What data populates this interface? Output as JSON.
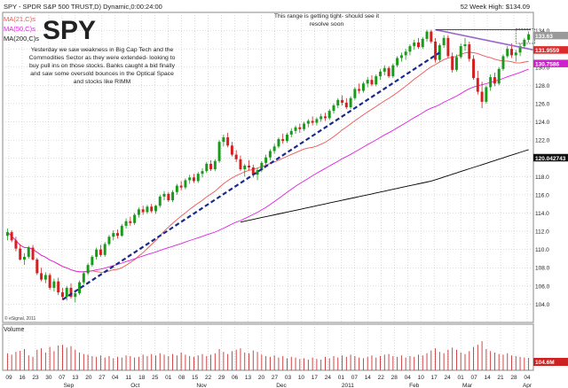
{
  "header": {
    "title": "SPY - SPDR S&P 500 TRUST,D) Dynamic,0:00:24:00",
    "week52": "52 Week High: $134.09",
    "ticker": "SPY",
    "ma21": "MA(21,C)s",
    "ma50": "MA(50,C)s",
    "ma200": "MA(200,C)s",
    "commentary": [
      "Yesterday we saw weakness in Big Cap Tech and the",
      "Commodities Sector as they were extended- looking to",
      "buy pull ins on those stocks.  Banks caught a bid finally",
      "and saw some oversold bounces in the Optical Space",
      "and stocks like RIMM"
    ],
    "annotation": [
      "This range is getting tight- should see it",
      "resolve soon"
    ],
    "copyright": "© eSignal, 2011",
    "volume_label": "Volume"
  },
  "price_badges": [
    {
      "label": "133.63",
      "color": "#9a9a9a"
    },
    {
      "label": "131.9559",
      "color": "#dd2a2a"
    },
    {
      "label": "130.7586",
      "color": "#cc22cc"
    },
    {
      "label": "120.042743",
      "color": "#111111"
    }
  ],
  "volume_badge": {
    "label": "104.6M",
    "color": "#cc2222"
  },
  "colors": {
    "up": "#1a9a1a",
    "down": "#d42020",
    "ma21": "#ee5555",
    "ma50": "#dd22dd",
    "ma200": "#000000",
    "trendline": "#1a2a8a",
    "resistance": "#9966cc",
    "grid": "#bbbbbb"
  },
  "chart_data": {
    "type": "candlestick",
    "ylim": [
      102,
      136
    ],
    "y_ticks": [
      104.0,
      106.0,
      108.0,
      110.0,
      112.0,
      114.0,
      116.0,
      118.0,
      120.0,
      122.0,
      124.0,
      126.0,
      128.0,
      130.0,
      132.0,
      134.0
    ],
    "x_ticks": [
      "09",
      "16",
      "23",
      "30",
      "07",
      "13",
      "20",
      "27",
      "04",
      "11",
      "18",
      "25",
      "01",
      "08",
      "15",
      "22",
      "29",
      "06",
      "13",
      "20",
      "27",
      "03",
      "10",
      "17",
      "24",
      "01",
      "07",
      "14",
      "22",
      "28",
      "04",
      "10",
      "17",
      "24",
      "01",
      "07",
      "14",
      "21",
      "28",
      "04"
    ],
    "month_labels": [
      "Sep",
      "Oct",
      "Nov",
      "Dec",
      "2011",
      "Feb",
      "Mar",
      "Apr"
    ],
    "ohlc": [
      [
        111.5,
        112.3,
        111.0,
        111.9
      ],
      [
        111.9,
        112.1,
        110.8,
        111.0
      ],
      [
        111.0,
        111.4,
        109.8,
        110.1
      ],
      [
        110.1,
        110.6,
        108.8,
        108.9
      ],
      [
        108.9,
        109.6,
        108.3,
        109.2
      ],
      [
        109.2,
        110.4,
        109.0,
        110.2
      ],
      [
        110.2,
        110.5,
        108.8,
        108.9
      ],
      [
        108.9,
        109.1,
        107.2,
        107.4
      ],
      [
        107.4,
        108.0,
        106.5,
        106.7
      ],
      [
        106.7,
        107.5,
        106.3,
        107.2
      ],
      [
        107.2,
        107.4,
        105.6,
        105.8
      ],
      [
        105.8,
        106.8,
        105.4,
        106.5
      ],
      [
        106.5,
        106.9,
        105.0,
        105.3
      ],
      [
        105.3,
        105.8,
        104.5,
        104.8
      ],
      [
        104.8,
        106.0,
        104.4,
        105.8
      ],
      [
        105.8,
        106.3,
        104.6,
        104.8
      ],
      [
        104.8,
        105.4,
        104.2,
        105.2
      ],
      [
        105.2,
        106.6,
        105.0,
        106.4
      ],
      [
        106.4,
        107.6,
        106.2,
        107.4
      ],
      [
        107.4,
        108.5,
        107.2,
        108.3
      ],
      [
        108.3,
        109.4,
        108.1,
        109.2
      ],
      [
        109.2,
        110.2,
        108.9,
        110.0
      ],
      [
        110.0,
        110.5,
        109.2,
        109.4
      ],
      [
        109.4,
        110.8,
        109.2,
        110.6
      ],
      [
        110.6,
        111.6,
        110.4,
        111.4
      ],
      [
        111.4,
        112.1,
        111.0,
        111.8
      ],
      [
        111.8,
        112.2,
        111.2,
        111.5
      ],
      [
        111.5,
        112.8,
        111.4,
        112.6
      ],
      [
        112.6,
        113.4,
        112.3,
        113.1
      ],
      [
        113.1,
        113.6,
        112.6,
        112.9
      ],
      [
        112.9,
        114.0,
        112.7,
        113.8
      ],
      [
        113.8,
        114.6,
        113.5,
        114.4
      ],
      [
        114.4,
        114.8,
        113.8,
        114.1
      ],
      [
        114.1,
        114.9,
        113.9,
        114.7
      ],
      [
        114.7,
        115.0,
        114.0,
        114.2
      ],
      [
        114.2,
        114.9,
        113.9,
        114.8
      ],
      [
        114.8,
        116.0,
        114.6,
        115.8
      ],
      [
        115.8,
        116.4,
        115.4,
        116.1
      ],
      [
        116.1,
        116.3,
        115.2,
        115.4
      ],
      [
        115.4,
        116.5,
        115.2,
        116.3
      ],
      [
        116.3,
        117.2,
        116.0,
        117.0
      ],
      [
        117.0,
        117.5,
        116.5,
        116.8
      ],
      [
        116.8,
        117.8,
        116.6,
        117.6
      ],
      [
        117.6,
        118.2,
        117.2,
        117.9
      ],
      [
        117.9,
        118.3,
        117.3,
        117.5
      ],
      [
        117.5,
        118.5,
        117.3,
        118.3
      ],
      [
        118.3,
        118.9,
        117.9,
        118.6
      ],
      [
        118.6,
        119.6,
        118.4,
        119.4
      ],
      [
        119.4,
        119.8,
        118.6,
        118.8
      ],
      [
        118.8,
        119.9,
        118.6,
        119.7
      ],
      [
        119.7,
        122.0,
        119.5,
        121.8
      ],
      [
        121.8,
        122.6,
        121.3,
        122.3
      ],
      [
        122.3,
        122.8,
        121.2,
        121.4
      ],
      [
        121.4,
        121.8,
        120.2,
        120.4
      ],
      [
        120.4,
        120.9,
        119.6,
        119.9
      ],
      [
        119.9,
        120.3,
        118.6,
        118.8
      ],
      [
        118.8,
        119.4,
        118.0,
        119.2
      ],
      [
        119.2,
        119.8,
        118.7,
        119.0
      ],
      [
        119.0,
        119.3,
        117.9,
        118.2
      ],
      [
        118.2,
        118.9,
        117.6,
        118.7
      ],
      [
        118.7,
        119.7,
        118.5,
        119.5
      ],
      [
        119.5,
        120.4,
        119.2,
        120.1
      ],
      [
        120.1,
        121.0,
        119.8,
        120.8
      ],
      [
        120.8,
        121.6,
        120.5,
        121.3
      ],
      [
        121.3,
        122.3,
        121.1,
        122.1
      ],
      [
        122.1,
        122.7,
        121.6,
        121.9
      ],
      [
        121.9,
        122.8,
        121.7,
        122.6
      ],
      [
        122.6,
        123.3,
        122.3,
        123.0
      ],
      [
        123.0,
        123.6,
        122.7,
        123.4
      ],
      [
        123.4,
        123.8,
        122.8,
        123.2
      ],
      [
        123.2,
        124.0,
        123.0,
        123.8
      ],
      [
        123.8,
        124.3,
        123.4,
        124.1
      ],
      [
        124.1,
        124.6,
        123.6,
        123.9
      ],
      [
        123.9,
        124.5,
        123.6,
        124.3
      ],
      [
        124.3,
        124.9,
        124.0,
        124.6
      ],
      [
        124.6,
        125.0,
        124.1,
        124.4
      ],
      [
        124.4,
        125.4,
        124.2,
        125.2
      ],
      [
        125.2,
        126.0,
        124.9,
        125.8
      ],
      [
        125.8,
        126.6,
        125.5,
        126.4
      ],
      [
        126.4,
        126.9,
        125.8,
        126.1
      ],
      [
        126.1,
        126.6,
        125.4,
        125.6
      ],
      [
        125.6,
        126.8,
        125.4,
        126.6
      ],
      [
        126.6,
        127.8,
        126.4,
        127.6
      ],
      [
        127.6,
        128.2,
        127.1,
        127.4
      ],
      [
        127.4,
        128.4,
        127.2,
        128.2
      ],
      [
        128.2,
        128.9,
        127.8,
        128.6
      ],
      [
        128.6,
        129.1,
        127.9,
        128.1
      ],
      [
        128.1,
        129.2,
        127.9,
        129.0
      ],
      [
        129.0,
        129.8,
        128.6,
        129.5
      ],
      [
        129.5,
        130.2,
        129.1,
        129.9
      ],
      [
        129.9,
        130.1,
        128.8,
        129.0
      ],
      [
        129.0,
        130.4,
        128.8,
        130.2
      ],
      [
        130.2,
        131.2,
        130.0,
        131.0
      ],
      [
        131.0,
        131.6,
        130.6,
        131.3
      ],
      [
        131.3,
        132.0,
        130.8,
        131.7
      ],
      [
        131.7,
        132.5,
        131.3,
        132.3
      ],
      [
        132.3,
        133.0,
        131.9,
        132.7
      ],
      [
        132.7,
        133.2,
        132.0,
        132.2
      ],
      [
        132.2,
        133.3,
        132.0,
        133.1
      ],
      [
        133.1,
        134.1,
        132.8,
        133.9
      ],
      [
        133.9,
        134.1,
        132.6,
        132.8
      ],
      [
        132.8,
        133.2,
        130.5,
        130.8
      ],
      [
        130.8,
        132.6,
        130.6,
        132.4
      ],
      [
        132.4,
        133.5,
        132.1,
        133.2
      ],
      [
        133.2,
        133.5,
        131.0,
        131.2
      ],
      [
        131.2,
        131.6,
        129.4,
        129.7
      ],
      [
        129.7,
        131.4,
        129.5,
        131.1
      ],
      [
        131.1,
        132.6,
        130.9,
        132.3
      ],
      [
        132.3,
        133.2,
        131.8,
        132.5
      ],
      [
        132.5,
        132.8,
        130.6,
        130.9
      ],
      [
        130.9,
        131.3,
        128.6,
        128.8
      ],
      [
        128.8,
        129.6,
        127.0,
        127.3
      ],
      [
        127.3,
        128.4,
        125.5,
        126.2
      ],
      [
        126.2,
        128.0,
        126.0,
        127.8
      ],
      [
        127.8,
        129.2,
        127.4,
        128.9
      ],
      [
        128.9,
        129.4,
        127.9,
        128.2
      ],
      [
        128.2,
        130.0,
        128.0,
        129.8
      ],
      [
        129.8,
        131.4,
        129.6,
        131.2
      ],
      [
        131.2,
        132.3,
        131.0,
        132.0
      ],
      [
        132.0,
        132.6,
        131.0,
        131.3
      ],
      [
        131.3,
        131.9,
        130.6,
        131.6
      ],
      [
        131.6,
        132.6,
        131.2,
        132.3
      ],
      [
        132.3,
        133.2,
        132.0,
        133.0
      ],
      [
        133.0,
        133.9,
        132.7,
        133.6
      ]
    ],
    "volume": [
      48,
      44,
      52,
      55,
      60,
      42,
      38,
      58,
      62,
      50,
      66,
      54,
      70,
      72,
      64,
      68,
      58,
      50,
      46,
      44,
      40,
      38,
      42,
      36,
      40,
      34,
      38,
      36,
      42,
      40,
      36,
      38,
      44,
      40,
      46,
      42,
      48,
      44,
      40,
      46,
      42,
      50,
      44,
      40,
      38,
      42,
      46,
      40,
      44,
      48,
      60,
      52,
      46,
      54,
      58,
      62,
      50,
      48,
      56,
      52,
      44,
      40,
      38,
      42,
      36,
      40,
      34,
      38,
      36,
      32,
      34,
      30,
      36,
      32,
      30,
      38,
      34,
      40,
      36,
      42,
      38,
      44,
      40,
      36,
      34,
      38,
      42,
      36,
      40,
      44,
      46,
      40,
      38,
      42,
      36,
      40,
      38,
      44,
      42,
      48,
      56,
      62,
      52,
      48,
      58,
      64,
      58,
      50,
      46,
      54,
      66,
      72,
      82,
      60,
      54,
      50,
      46,
      44,
      48,
      42,
      40,
      38,
      36,
      35
    ],
    "volume_ylim": [
      0,
      100
    ],
    "resistance": {
      "from": [
        101,
        134.1
      ],
      "to": [
        124,
        131.9
      ]
    },
    "range_box": {
      "x0": 120,
      "x1": 124,
      "y0": 132.6,
      "y1": 134.2
    }
  }
}
